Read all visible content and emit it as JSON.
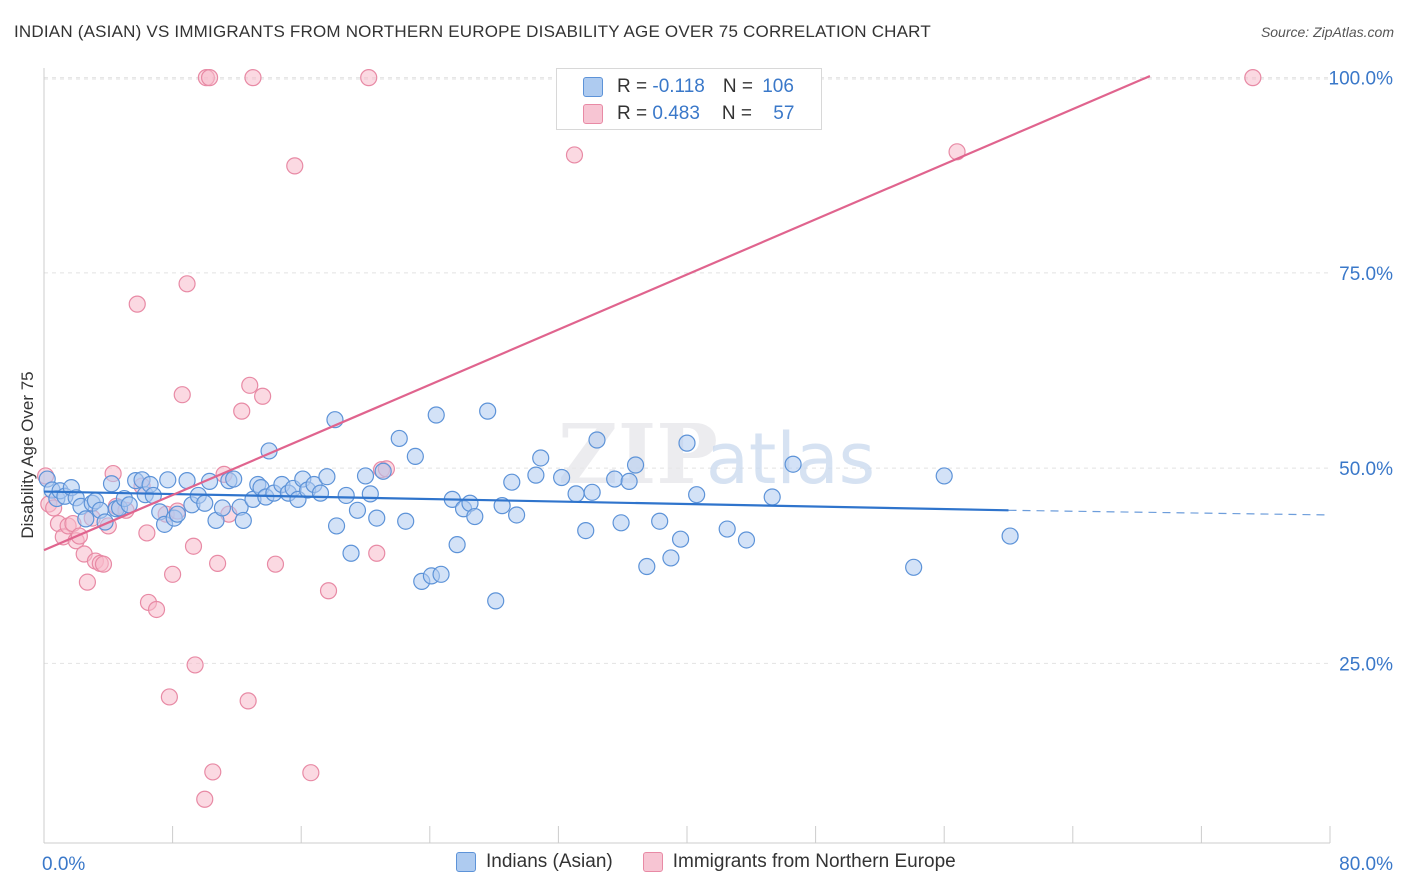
{
  "header": {
    "title": "INDIAN (ASIAN) VS IMMIGRANTS FROM NORTHERN EUROPE DISABILITY AGE OVER 75 CORRELATION CHART",
    "source": "Source: ZipAtlas.com"
  },
  "legend": {
    "series1": {
      "r_label": "R = ",
      "r_value": "-0.118",
      "n_label": "N = ",
      "n_value": "106"
    },
    "series2": {
      "r_label": "R = ",
      "r_value": "0.483",
      "n_label": "N = ",
      "n_value": "57"
    }
  },
  "watermark": {
    "zip": "ZIP",
    "atlas": "atlas"
  },
  "chart_data": {
    "type": "scatter",
    "title": "INDIAN (ASIAN) VS IMMIGRANTS FROM NORTHERN EUROPE DISABILITY AGE OVER 75 CORRELATION CHART",
    "xlabel": "",
    "ylabel": "Disability Age Over 75",
    "xlim": [
      0,
      80
    ],
    "ylim": [
      2,
      102
    ],
    "x_tick_labels": [
      "0.0%",
      "80.0%"
    ],
    "y_ticks": [
      25,
      50,
      75,
      100
    ],
    "y_tick_labels": [
      "25.0%",
      "50.0%",
      "75.0%",
      "100.0%"
    ],
    "grid": true,
    "colors": {
      "series1_fill": "#aecbf0",
      "series1_stroke": "#5d93d8",
      "series1_line": "#2f74cc",
      "series2_fill": "#f7b9ca",
      "series2_stroke": "#e88aa5",
      "series2_line": "#e0648e",
      "grid": "#e2e2e2",
      "tick_label": "#3a78c9"
    },
    "series": [
      {
        "name": "Indians (Asian)",
        "trend": {
          "x1": 0,
          "y1": 47.0,
          "x2": 60,
          "y2": 44.6,
          "dash_x2": 80,
          "dash_y2": 44.0
        },
        "points": [
          [
            0.2,
            48.6
          ],
          [
            0.5,
            47.2
          ],
          [
            0.8,
            46.1
          ],
          [
            1.0,
            47.1
          ],
          [
            1.3,
            46.4
          ],
          [
            1.7,
            47.5
          ],
          [
            2.0,
            46.2
          ],
          [
            2.3,
            45.1
          ],
          [
            2.6,
            43.5
          ],
          [
            3.0,
            45.5
          ],
          [
            3.2,
            45.8
          ],
          [
            3.5,
            44.6
          ],
          [
            3.8,
            43.1
          ],
          [
            4.2,
            48.0
          ],
          [
            4.5,
            44.8
          ],
          [
            4.7,
            44.9
          ],
          [
            5.0,
            46.1
          ],
          [
            5.3,
            45.3
          ],
          [
            5.7,
            48.4
          ],
          [
            6.1,
            48.5
          ],
          [
            6.3,
            46.6
          ],
          [
            6.6,
            47.9
          ],
          [
            6.8,
            46.5
          ],
          [
            7.2,
            44.4
          ],
          [
            7.5,
            42.8
          ],
          [
            7.7,
            48.5
          ],
          [
            8.1,
            43.6
          ],
          [
            8.3,
            44.1
          ],
          [
            8.9,
            48.4
          ],
          [
            9.2,
            45.3
          ],
          [
            9.6,
            46.5
          ],
          [
            10.0,
            45.5
          ],
          [
            10.3,
            48.3
          ],
          [
            10.7,
            43.3
          ],
          [
            11.1,
            44.9
          ],
          [
            11.5,
            48.4
          ],
          [
            11.8,
            48.6
          ],
          [
            12.2,
            45.0
          ],
          [
            12.4,
            43.3
          ],
          [
            13.0,
            46.0
          ],
          [
            13.3,
            47.9
          ],
          [
            13.5,
            47.5
          ],
          [
            13.8,
            46.3
          ],
          [
            14.0,
            52.2
          ],
          [
            14.3,
            46.8
          ],
          [
            14.8,
            47.9
          ],
          [
            15.2,
            46.8
          ],
          [
            15.5,
            47.4
          ],
          [
            15.8,
            46.0
          ],
          [
            16.1,
            48.6
          ],
          [
            16.4,
            47.2
          ],
          [
            16.8,
            47.9
          ],
          [
            17.2,
            46.8
          ],
          [
            17.6,
            48.9
          ],
          [
            18.1,
            56.2
          ],
          [
            18.2,
            42.6
          ],
          [
            18.8,
            46.5
          ],
          [
            19.1,
            39.1
          ],
          [
            19.5,
            44.6
          ],
          [
            20.0,
            49.0
          ],
          [
            20.3,
            46.7
          ],
          [
            20.7,
            43.6
          ],
          [
            21.1,
            49.6
          ],
          [
            22.1,
            53.8
          ],
          [
            22.5,
            43.2
          ],
          [
            23.1,
            51.5
          ],
          [
            23.5,
            35.5
          ],
          [
            24.1,
            36.2
          ],
          [
            24.4,
            56.8
          ],
          [
            24.7,
            36.4
          ],
          [
            25.4,
            46.0
          ],
          [
            25.7,
            40.2
          ],
          [
            26.1,
            44.8
          ],
          [
            26.5,
            45.5
          ],
          [
            26.8,
            43.8
          ],
          [
            27.6,
            57.3
          ],
          [
            28.1,
            33.0
          ],
          [
            28.5,
            45.2
          ],
          [
            29.1,
            48.2
          ],
          [
            29.4,
            44.0
          ],
          [
            30.6,
            49.1
          ],
          [
            30.9,
            51.3
          ],
          [
            32.2,
            48.8
          ],
          [
            33.1,
            46.7
          ],
          [
            33.7,
            42.0
          ],
          [
            34.1,
            46.9
          ],
          [
            34.4,
            53.6
          ],
          [
            35.5,
            48.6
          ],
          [
            35.9,
            43.0
          ],
          [
            36.4,
            48.3
          ],
          [
            36.8,
            50.4
          ],
          [
            37.5,
            37.4
          ],
          [
            38.3,
            43.2
          ],
          [
            39.0,
            38.5
          ],
          [
            39.6,
            40.9
          ],
          [
            40.0,
            53.2
          ],
          [
            40.6,
            46.6
          ],
          [
            42.5,
            42.2
          ],
          [
            43.7,
            40.8
          ],
          [
            45.3,
            46.3
          ],
          [
            46.6,
            50.5
          ],
          [
            54.1,
            37.3
          ],
          [
            56.0,
            49.0
          ],
          [
            60.1,
            41.3
          ]
        ]
      },
      {
        "name": "Immigrants from Northern Europe",
        "trend": {
          "x1": 0,
          "y1": 39.5,
          "x2": 68.8,
          "y2": 100.2
        },
        "points": [
          [
            0.1,
            49.0
          ],
          [
            0.3,
            45.4
          ],
          [
            0.6,
            44.9
          ],
          [
            0.9,
            42.9
          ],
          [
            1.2,
            41.2
          ],
          [
            1.5,
            42.6
          ],
          [
            1.8,
            42.9
          ],
          [
            2.0,
            40.7
          ],
          [
            2.2,
            41.3
          ],
          [
            2.5,
            39.0
          ],
          [
            2.7,
            35.4
          ],
          [
            3.0,
            43.6
          ],
          [
            3.2,
            38.1
          ],
          [
            3.5,
            37.8
          ],
          [
            3.7,
            37.7
          ],
          [
            4.0,
            42.6
          ],
          [
            4.3,
            49.3
          ],
          [
            4.5,
            45.1
          ],
          [
            5.1,
            44.6
          ],
          [
            5.8,
            71.0
          ],
          [
            6.1,
            47.7
          ],
          [
            6.4,
            41.7
          ],
          [
            6.5,
            32.8
          ],
          [
            7.0,
            31.9
          ],
          [
            7.6,
            44.1
          ],
          [
            7.8,
            20.7
          ],
          [
            8.0,
            36.4
          ],
          [
            8.3,
            44.5
          ],
          [
            8.6,
            59.4
          ],
          [
            8.9,
            73.6
          ],
          [
            9.3,
            40.0
          ],
          [
            9.4,
            24.8
          ],
          [
            10.0,
            7.6
          ],
          [
            10.1,
            100.0
          ],
          [
            10.3,
            100.0
          ],
          [
            10.5,
            11.1
          ],
          [
            10.8,
            37.8
          ],
          [
            11.2,
            49.2
          ],
          [
            11.5,
            44.1
          ],
          [
            12.3,
            57.3
          ],
          [
            12.7,
            20.2
          ],
          [
            12.8,
            60.6
          ],
          [
            13.0,
            100.0
          ],
          [
            13.6,
            59.2
          ],
          [
            14.4,
            37.7
          ],
          [
            15.6,
            88.7
          ],
          [
            16.6,
            11.0
          ],
          [
            17.7,
            34.3
          ],
          [
            20.2,
            100.0
          ],
          [
            20.7,
            39.1
          ],
          [
            21.0,
            49.8
          ],
          [
            21.3,
            49.9
          ],
          [
            33.0,
            90.1
          ],
          [
            56.8,
            90.5
          ],
          [
            75.2,
            100.0
          ]
        ]
      }
    ]
  },
  "bottom_legend": {
    "series1": "Indians (Asian)",
    "series2": "Immigrants from Northern Europe"
  }
}
